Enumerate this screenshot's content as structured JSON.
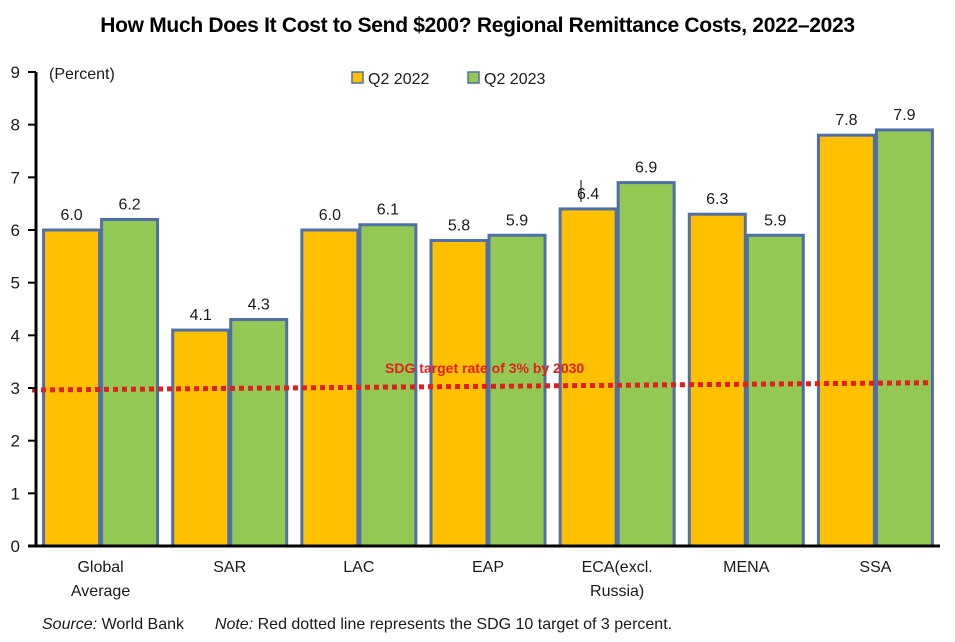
{
  "chart_data": {
    "type": "bar",
    "title": "How Much Does It Cost to Send $200? Regional Remittance Costs, 2022–2023",
    "ylabel": "(Percent)",
    "xlabel": "",
    "ylim": [
      0,
      9
    ],
    "yticks": [
      0,
      1,
      2,
      3,
      4,
      5,
      6,
      7,
      8,
      9
    ],
    "grid": false,
    "legend_position": "top-center",
    "categories": [
      [
        "Global",
        "Average"
      ],
      [
        "SAR"
      ],
      [
        "LAC"
      ],
      [
        "EAP"
      ],
      [
        "ECA(excl.",
        "Russia)"
      ],
      [
        "MENA"
      ],
      [
        "SSA"
      ]
    ],
    "series": [
      {
        "name": "Q2 2022",
        "color": "#FFC000",
        "values": [
          6.0,
          4.1,
          6.0,
          5.8,
          6.4,
          6.3,
          7.8
        ],
        "labels": [
          "6.0",
          "4.1",
          "6.0",
          "5.8",
          "6.4",
          "6.3",
          "7.8"
        ]
      },
      {
        "name": "Q2 2023",
        "color": "#92C853",
        "values": [
          6.2,
          4.3,
          6.1,
          5.9,
          6.9,
          5.9,
          7.9
        ],
        "labels": [
          "6.2",
          "4.3",
          "6.1",
          "5.9",
          "6.9",
          "5.9",
          "7.9"
        ]
      }
    ],
    "bar_edge_color": "#4F6FA6",
    "reference_line": {
      "value": 3,
      "end_value": 3.1,
      "style": "dotted",
      "color": "#E02020",
      "label": "SDG target rate of 3% by 2030"
    }
  },
  "footer": {
    "source_label": "Source:",
    "source_text": "World Bank",
    "note_label": "Note:",
    "note_text": "Red dotted line represents the SDG 10 target of 3 percent."
  }
}
